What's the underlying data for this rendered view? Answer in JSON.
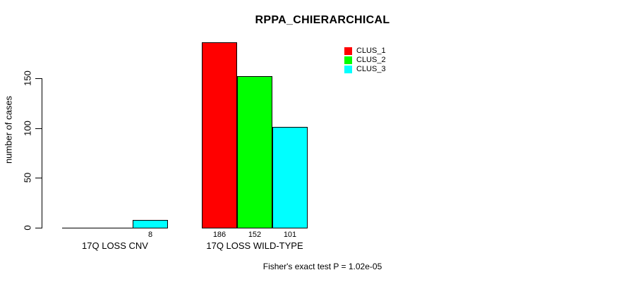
{
  "title": "RPPA_CHIERARCHICAL",
  "ylabel": "number of cases",
  "footer": "Fisher's exact test P = 1.02e-05",
  "legend": {
    "items": [
      {
        "label": "CLUS_1",
        "color": "#ff0000"
      },
      {
        "label": "CLUS_2",
        "color": "#00ff00"
      },
      {
        "label": "CLUS_3",
        "color": "#00ffff"
      }
    ]
  },
  "chart_data": {
    "type": "bar",
    "title": "RPPA_CHIERARCHICAL",
    "ylabel": "number of cases",
    "xlabel": "",
    "categories": [
      "17Q LOSS CNV",
      "17Q LOSS WILD-TYPE"
    ],
    "series": [
      {
        "name": "CLUS_1",
        "color": "#ff0000",
        "values": [
          0,
          186
        ]
      },
      {
        "name": "CLUS_2",
        "color": "#00ff00",
        "values": [
          0,
          152
        ]
      },
      {
        "name": "CLUS_3",
        "color": "#00ffff",
        "values": [
          8,
          101
        ]
      }
    ],
    "bar_value_labels": [
      [
        null,
        null,
        "8"
      ],
      [
        "186",
        "152",
        "101"
      ]
    ],
    "yticks": [
      0,
      50,
      100,
      150
    ],
    "ylim": [
      0,
      186
    ],
    "grid": false,
    "legend_position": "top-right",
    "annotation": "Fisher's exact test P = 1.02e-05"
  }
}
